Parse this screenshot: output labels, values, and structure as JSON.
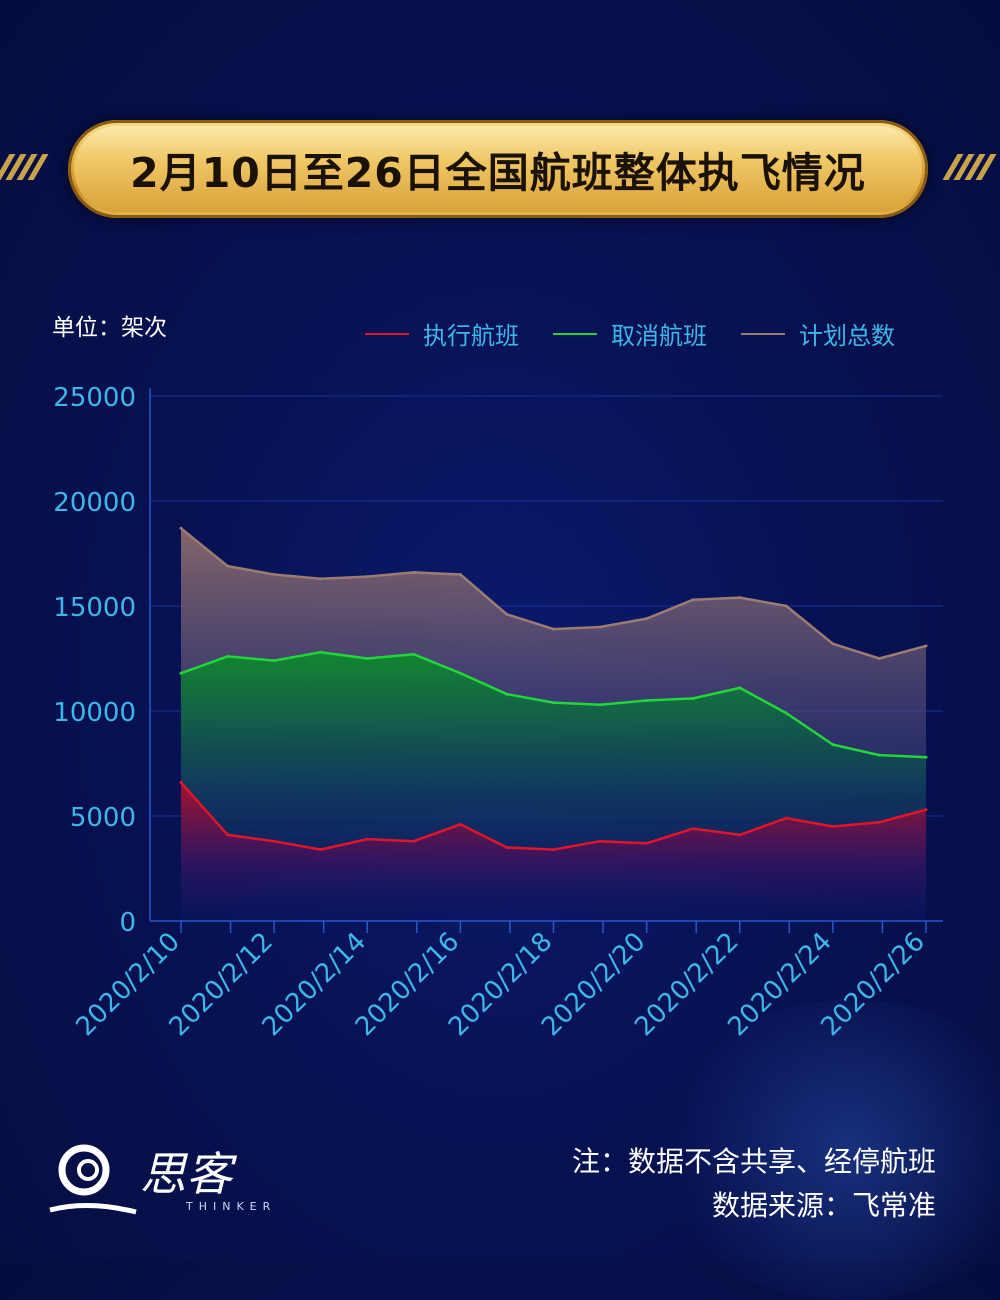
{
  "title": "2月10日至26日全国航班整体执飞情况",
  "unit_label": "单位：架次",
  "note": "注：数据不含共享、经停航班",
  "source": "数据来源：飞常准",
  "logo": {
    "name": "思客",
    "sub": "THINKER"
  },
  "colors": {
    "executed": "#e0152a",
    "cancelled": "#23d43a",
    "total": "#9c7c72",
    "axis_text": "#3fb6e8"
  },
  "chart_data": {
    "type": "area",
    "ylim": [
      0,
      25000
    ],
    "yticks": [
      0,
      5000,
      10000,
      15000,
      20000,
      25000
    ],
    "x": [
      "2020/2/10",
      "2020/2/11",
      "2020/2/12",
      "2020/2/13",
      "2020/2/14",
      "2020/2/15",
      "2020/2/16",
      "2020/2/17",
      "2020/2/18",
      "2020/2/19",
      "2020/2/20",
      "2020/2/21",
      "2020/2/22",
      "2020/2/23",
      "2020/2/24",
      "2020/2/25",
      "2020/2/26"
    ],
    "xtick_labels": [
      "2020/2/10",
      "2020/2/12",
      "2020/2/14",
      "2020/2/16",
      "2020/2/18",
      "2020/2/20",
      "2020/2/22",
      "2020/2/24",
      "2020/2/26"
    ],
    "grid": true,
    "legend_position": "top-right",
    "series": [
      {
        "name": "执行航班",
        "key": "executed",
        "values": [
          6600,
          4100,
          3800,
          3400,
          3900,
          3800,
          4600,
          3500,
          3400,
          3800,
          3700,
          4400,
          4100,
          4900,
          4500,
          4700,
          5300
        ]
      },
      {
        "name": "取消航班",
        "key": "cancelled",
        "values": [
          11800,
          12600,
          12400,
          12800,
          12500,
          12700,
          11800,
          10800,
          10400,
          10300,
          10500,
          10600,
          11100,
          9900,
          8400,
          7900,
          7800
        ]
      },
      {
        "name": "计划总数",
        "key": "total",
        "values": [
          18700,
          16900,
          16500,
          16300,
          16400,
          16600,
          16500,
          14600,
          13900,
          14000,
          14400,
          15300,
          15400,
          15000,
          13200,
          12500,
          13100
        ]
      }
    ]
  }
}
